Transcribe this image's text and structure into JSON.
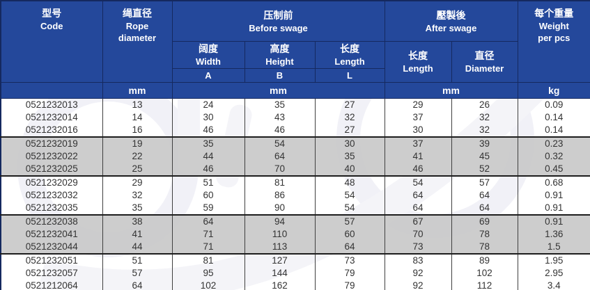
{
  "table": {
    "title_semantic": "wire-rope-swage-fitting-specifications",
    "header": {
      "code": {
        "zh": "型号",
        "en": "Code"
      },
      "rope_diameter": {
        "zh": "绳直径",
        "en": "Rope\ndiameter"
      },
      "before_swage": {
        "zh": "压制前",
        "en": "Before swage"
      },
      "after_swage": {
        "zh": "壓製後",
        "en": "After swage"
      },
      "weight": {
        "zh": "每个重量",
        "en": "Weight\nper pcs"
      },
      "before_cols": [
        {
          "zh": "阔度",
          "en": "Width",
          "letter": "A"
        },
        {
          "zh": "高度",
          "en": "Height",
          "letter": "B"
        },
        {
          "zh": "长度",
          "en": "Length",
          "letter": "L"
        }
      ],
      "after_cols": [
        {
          "zh": "长度",
          "en": "Length"
        },
        {
          "zh": "直径",
          "en": "Diameter"
        }
      ]
    },
    "units": {
      "rope": "mm",
      "before": "mm",
      "after": "mm",
      "weight": "kg"
    },
    "group_size": 3,
    "rows": [
      {
        "code": "0521232013",
        "values": [
          "13",
          "24",
          "35",
          "27",
          "29",
          "26",
          "0.09"
        ]
      },
      {
        "code": "0521232014",
        "values": [
          "14",
          "30",
          "43",
          "32",
          "37",
          "32",
          "0.14"
        ]
      },
      {
        "code": "0521232016",
        "values": [
          "16",
          "46",
          "46",
          "27",
          "30",
          "32",
          "0.14"
        ]
      },
      {
        "code": "0521232019",
        "values": [
          "19",
          "35",
          "54",
          "30",
          "37",
          "39",
          "0.23"
        ]
      },
      {
        "code": "0521232022",
        "values": [
          "22",
          "44",
          "64",
          "35",
          "41",
          "45",
          "0.32"
        ]
      },
      {
        "code": "0521232025",
        "values": [
          "25",
          "46",
          "70",
          "40",
          "46",
          "52",
          "0.45"
        ]
      },
      {
        "code": "0521232029",
        "values": [
          "29",
          "51",
          "81",
          "48",
          "54",
          "57",
          "0.68"
        ]
      },
      {
        "code": "0521232032",
        "values": [
          "32",
          "60",
          "86",
          "54",
          "64",
          "64",
          "0.91"
        ]
      },
      {
        "code": "0521232035",
        "values": [
          "35",
          "59",
          "90",
          "54",
          "64",
          "64",
          "0.91"
        ]
      },
      {
        "code": "0521232038",
        "values": [
          "38",
          "64",
          "94",
          "57",
          "67",
          "69",
          "0.91"
        ]
      },
      {
        "code": "0521232041",
        "values": [
          "41",
          "71",
          "110",
          "60",
          "70",
          "78",
          "1.36"
        ]
      },
      {
        "code": "0521232044",
        "values": [
          "44",
          "71",
          "113",
          "64",
          "73",
          "78",
          "1.5"
        ]
      },
      {
        "code": "0521232051",
        "values": [
          "51",
          "81",
          "127",
          "73",
          "83",
          "89",
          "1.95"
        ]
      },
      {
        "code": "0521232057",
        "values": [
          "57",
          "95",
          "144",
          "79",
          "92",
          "102",
          "2.95"
        ]
      },
      {
        "code": "0521212064",
        "values": [
          "64",
          "102",
          "162",
          "79",
          "92",
          "112",
          "3.4"
        ]
      }
    ]
  },
  "colors": {
    "header_blue": "#24489B",
    "border_navy": "#15295f",
    "row_alt_gray": "#cecece",
    "row_white": "#f7f7fb",
    "data_text": "#333333"
  }
}
